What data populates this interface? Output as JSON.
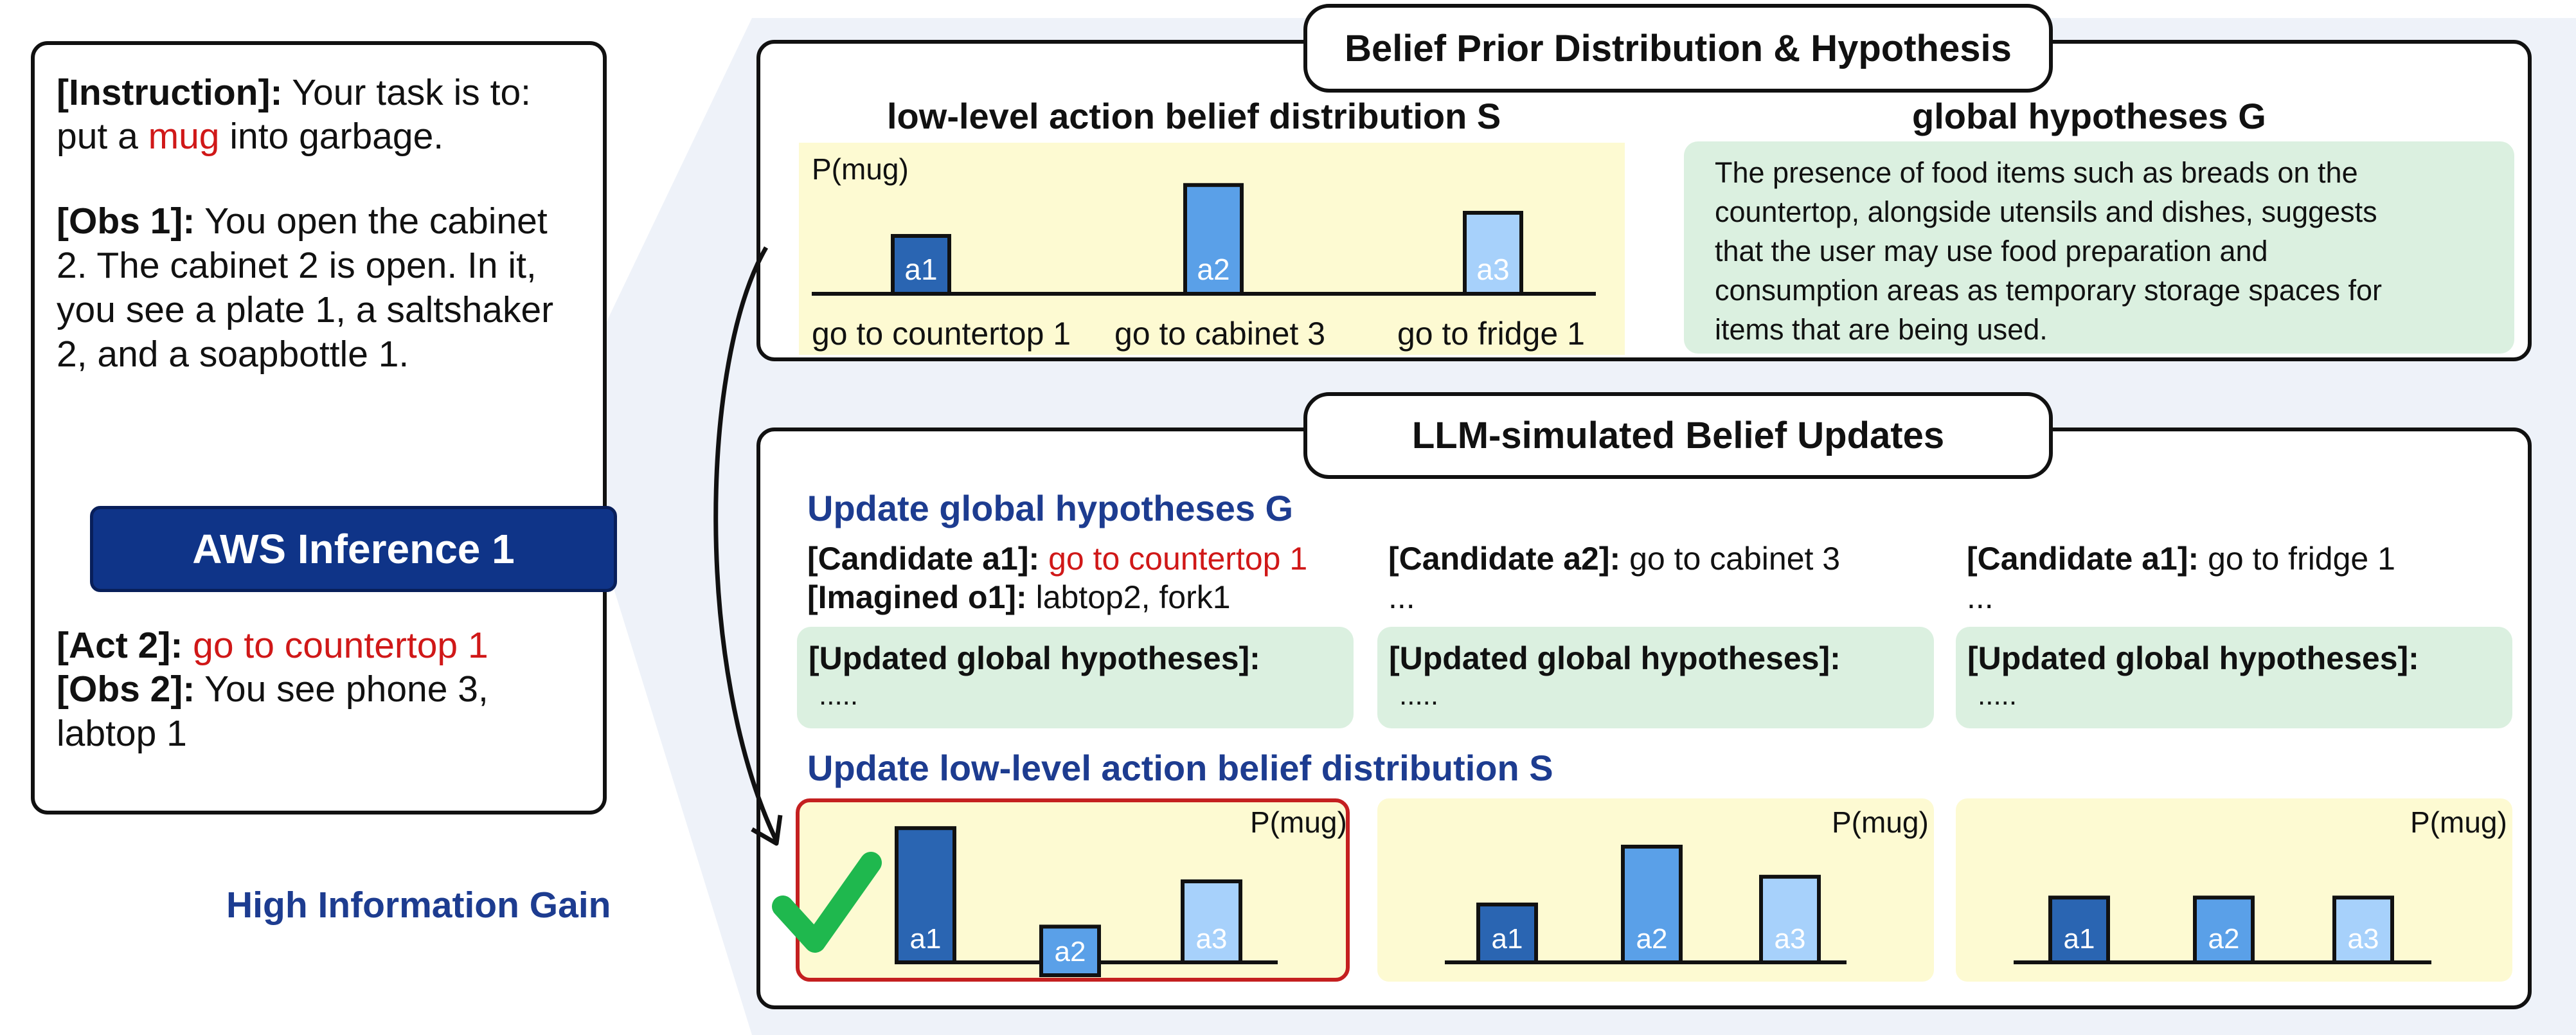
{
  "left_panel": {
    "instruction_label": "[Instruction]:",
    "instruction_text_1": " Your task is to:",
    "instruction_text_2a": "put a ",
    "instruction_highlight": "mug",
    "instruction_text_2b": " into garbage.",
    "obs1_label": "[Obs 1]:",
    "obs1_lines": [
      " You open the cabinet",
      "2. The cabinet 2 is open. In it,",
      "you see a plate 1, a saltshaker",
      "2, and a soapbottle 1."
    ],
    "button_label": "AWS Inference 1",
    "act2_label": "[Act 2]:",
    "act2_text": " go to countertop 1",
    "obs2_label": "[Obs 2]:",
    "obs2_lines": [
      " You see phone 3,",
      "labtop 1"
    ]
  },
  "side_label": "High Information Gain",
  "prior": {
    "title": "Belief Prior Distribution & Hypothesis",
    "dist_heading": "low-level action belief distribution S",
    "hyp_heading": "global hypotheses G",
    "prob_label": "P(mug)",
    "action_labels": [
      "go to countertop 1",
      "go to cabinet 3",
      "go to fridge 1"
    ],
    "hypothesis_lines": [
      "The presence of food items such as breads on the",
      "countertop, alongside utensils and dishes, suggests",
      "that the user may use food preparation and",
      "consumption areas as temporary storage spaces for",
      "items that are being used."
    ]
  },
  "updates": {
    "title": "LLM-simulated Belief Updates",
    "global_heading": "Update global hypotheses G",
    "dist_heading": "Update low-level action belief distribution S",
    "candidates": [
      {
        "label": "[Candidate a1]:",
        "action": " go to countertop 1",
        "line2_label": "[Imagined o1]:",
        "line2_text": " labtop2, fork1"
      },
      {
        "label": "[Candidate a2]:",
        "action": " go to cabinet 3",
        "line2_label": "",
        "line2_text": "..."
      },
      {
        "label": "[Candidate a1]:",
        "action": " go to fridge 1",
        "line2_label": "",
        "line2_text": "..."
      }
    ],
    "updated_label": "[Updated global hypotheses]:",
    "updated_placeholder": ".....",
    "prob_label": "P(mug)"
  },
  "colors": {
    "bar_a1": "#2a65b2",
    "bar_a2": "#5aa0e8",
    "bar_a3": "#a7d1fb",
    "highlight_border": "#c42020",
    "check": "#1fb84e",
    "navy": "#0f3488"
  },
  "chart_data": [
    {
      "type": "bar",
      "categories": [
        "a1",
        "a2",
        "a3"
      ],
      "values": [
        0.25,
        0.47,
        0.35
      ],
      "ylabel": "P(mug)"
    },
    {
      "type": "bar",
      "categories": [
        "a1",
        "a2",
        "a3"
      ],
      "values": [
        0.58,
        0.21,
        0.35
      ],
      "ylabel": "P(mug)"
    },
    {
      "type": "bar",
      "categories": [
        "a1",
        "a2",
        "a3"
      ],
      "values": [
        0.25,
        0.5,
        0.37
      ],
      "ylabel": "P(mug)"
    },
    {
      "type": "bar",
      "categories": [
        "a1",
        "a2",
        "a3"
      ],
      "values": [
        0.28,
        0.28,
        0.28
      ],
      "ylabel": "P(mug)"
    }
  ]
}
